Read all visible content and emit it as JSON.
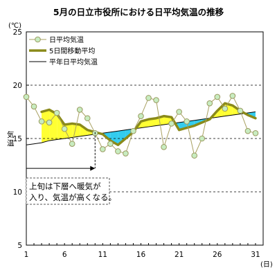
{
  "chart_data": {
    "type": "line",
    "title": "5月の日立市役所における日平均気温の推移",
    "y_unit": "(℃)",
    "ylabel": "気温",
    "x_unit": "(日)",
    "ylim": [
      5,
      25
    ],
    "yticks": [
      5,
      10,
      15,
      20,
      25
    ],
    "xlim": [
      1,
      31
    ],
    "xticks": [
      1,
      6,
      11,
      16,
      21,
      26,
      31
    ],
    "grid": "horizontal-dashed",
    "legend": "top-left",
    "x": [
      1,
      2,
      3,
      4,
      5,
      6,
      7,
      8,
      9,
      10,
      11,
      12,
      13,
      14,
      15,
      16,
      17,
      18,
      19,
      20,
      21,
      22,
      23,
      24,
      25,
      26,
      27,
      28,
      29,
      30,
      31
    ],
    "series": [
      {
        "name": "日平均気温",
        "style": "thin line with circle markers",
        "color": "#a8a060",
        "marker_fill": "#c8ecc0",
        "values": [
          18.9,
          18.0,
          16.6,
          16.5,
          17.4,
          15.9,
          14.5,
          17.7,
          16.9,
          15.5,
          14.0,
          14.5,
          13.8,
          13.6,
          15.7,
          17.1,
          18.8,
          18.6,
          14.2,
          16.4,
          17.5,
          16.6,
          13.4,
          15.0,
          18.3,
          18.9,
          17.8,
          19.0,
          17.6,
          15.7,
          15.5
        ]
      },
      {
        "name": "5日間移動平均",
        "style": "thick line",
        "color": "#8a8a1a",
        "values": [
          null,
          null,
          17.5,
          17.7,
          17.3,
          16.3,
          16.4,
          16.3,
          15.8,
          15.6,
          15.4,
          14.8,
          14.4,
          15.0,
          15.6,
          16.6,
          16.8,
          16.9,
          17.1,
          17.0,
          15.8,
          16.0,
          16.2,
          16.5,
          16.8,
          17.6,
          18.3,
          18.1,
          17.6,
          17.2,
          16.9
        ]
      },
      {
        "name": "平年日平均気温",
        "style": "thin black line",
        "color": "#000000",
        "values": [
          14.4,
          14.5,
          14.6,
          14.8,
          14.9,
          15.0,
          15.1,
          15.2,
          15.3,
          15.4,
          15.5,
          15.6,
          15.7,
          15.8,
          15.9,
          16.0,
          16.1,
          16.2,
          16.3,
          16.4,
          16.5,
          16.6,
          16.7,
          16.8,
          16.9,
          17.0,
          17.1,
          17.2,
          17.3,
          17.4,
          17.5
        ]
      }
    ],
    "fill_colors": {
      "above_normal": "#ffff33",
      "below_normal": "#33ccee"
    },
    "annotation": {
      "lines": [
        "上旬は下層へ暖気が",
        "入り、気温が高くなる。"
      ],
      "arrow_from_day": 1,
      "arrow_to_day": 10,
      "arrow_value": 12.2
    }
  }
}
